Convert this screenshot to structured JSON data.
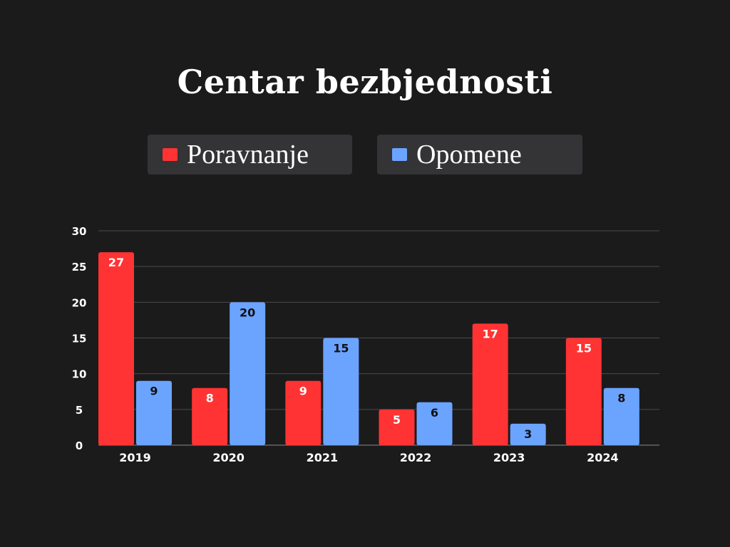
{
  "chart_data": {
    "type": "bar",
    "title": "Centar bezbjednosti",
    "xlabel": "",
    "ylabel": "",
    "categories": [
      "2019",
      "2020",
      "2021",
      "2022",
      "2023",
      "2024"
    ],
    "series": [
      {
        "name": "Poravnanje",
        "color": "#ff3333",
        "label_color": "#ffffff",
        "values": [
          27,
          8,
          9,
          5,
          17,
          15
        ]
      },
      {
        "name": "Opomene",
        "color": "#6ba4ff",
        "label_color": "#111111",
        "values": [
          9,
          20,
          15,
          6,
          3,
          8
        ]
      }
    ],
    "ylim": [
      0,
      30
    ],
    "yticks": [
      0,
      5,
      10,
      15,
      20,
      25,
      30
    ],
    "grid": true,
    "legend_position": "top",
    "background": "#1c1b1c",
    "grid_color": "#4a494b"
  }
}
